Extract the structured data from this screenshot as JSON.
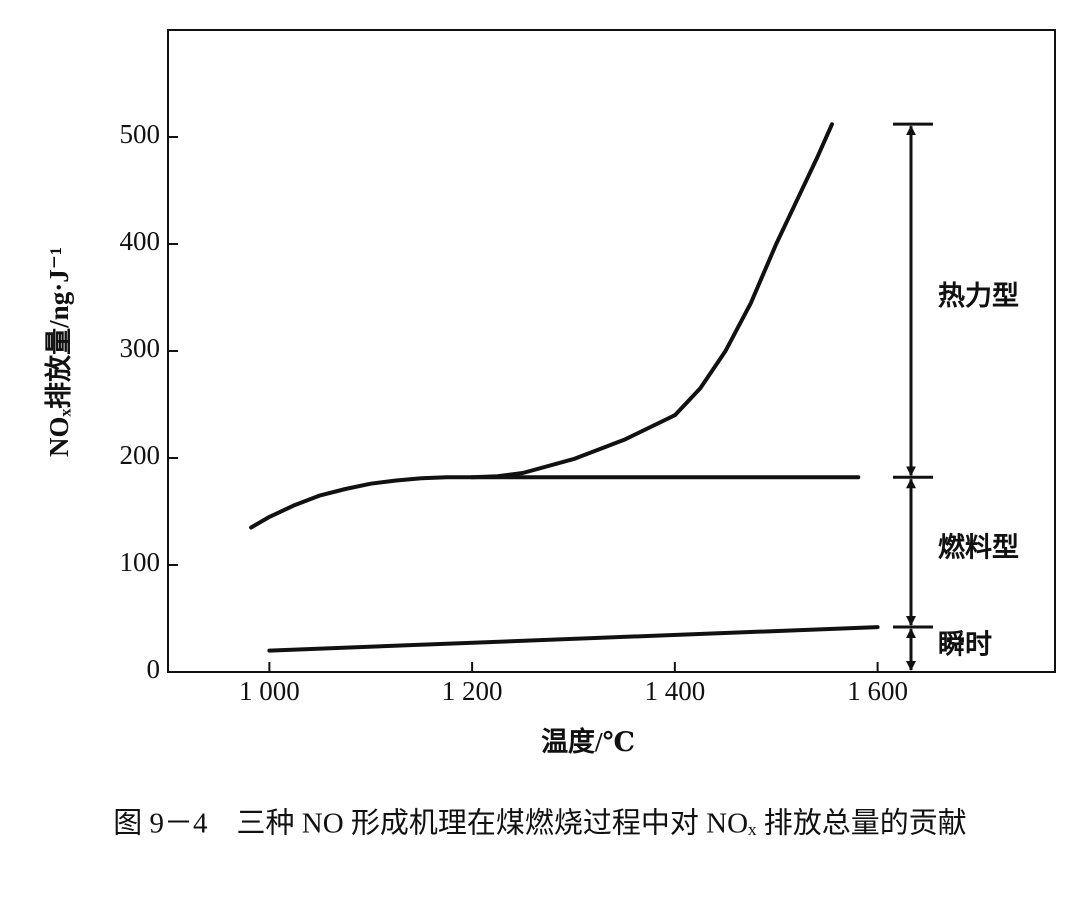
{
  "chart_data": {
    "type": "line",
    "x_label": "温度/℃",
    "y_label": "NOₓ排放量/ng·J⁻¹",
    "caption": "图 9－4　三种 NO 形成机理在煤燃烧过程中对 NOₓ 排放总量的贡献",
    "xlim": [
      900,
      1775
    ],
    "ylim": [
      0,
      600
    ],
    "xticks": [
      {
        "value": 1000,
        "label": "1 000"
      },
      {
        "value": 1200,
        "label": "1 200"
      },
      {
        "value": 1400,
        "label": "1 400"
      },
      {
        "value": 1600,
        "label": "1 600"
      }
    ],
    "yticks": [
      0,
      100,
      200,
      300,
      400,
      500
    ],
    "series": [
      {
        "color": "#111111",
        "x": [
          982,
          1000,
          1025,
          1050,
          1075,
          1100,
          1125,
          1150,
          1175,
          1200,
          1225,
          1250,
          1300,
          1350,
          1400,
          1425,
          1450,
          1475,
          1500,
          1520,
          1540,
          1555
        ],
        "values": [
          135,
          145,
          156,
          165,
          171,
          176,
          179,
          181,
          182,
          182,
          183,
          186,
          199,
          217,
          240,
          265,
          300,
          345,
          400,
          440,
          480,
          512
        ]
      },
      {
        "color": "#111111",
        "x": [
          1200,
          1581
        ],
        "values": [
          182,
          182
        ]
      },
      {
        "color": "#111111",
        "x": [
          1000,
          1600
        ],
        "values": [
          20,
          42
        ]
      }
    ],
    "annotations": [
      {
        "text": "热力型",
        "from": 182,
        "to": 512
      },
      {
        "text": "燃料型",
        "from": 42,
        "to": 182
      },
      {
        "text": "瞬时",
        "from": 0,
        "to": 42
      }
    ]
  }
}
